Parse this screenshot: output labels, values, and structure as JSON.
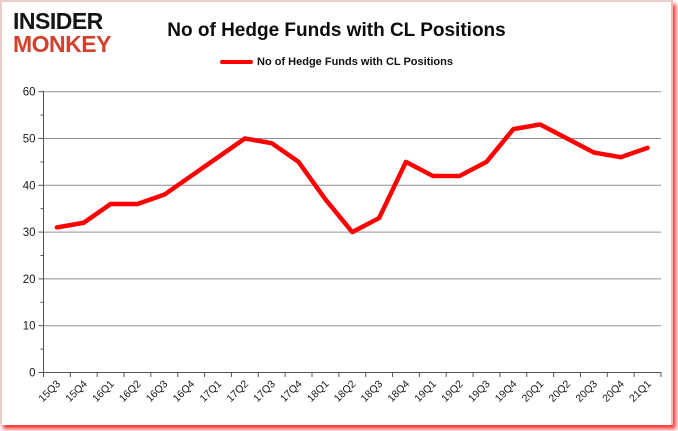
{
  "logo": {
    "line1": "INSIDER",
    "line2": "MONKEY"
  },
  "header": {
    "title": "No of Hedge Funds with CL Positions"
  },
  "legend": {
    "label": "No of Hedge Funds with CL Positions",
    "swatch_color": "#ff0000"
  },
  "chart_data": {
    "type": "line",
    "title": "No of Hedge Funds with CL Positions",
    "categories": [
      "15Q3",
      "15Q4",
      "16Q1",
      "16Q2",
      "16Q3",
      "16Q4",
      "17Q1",
      "17Q2",
      "17Q3",
      "17Q4",
      "18Q1",
      "18Q2",
      "18Q3",
      "18Q4",
      "19Q1",
      "19Q2",
      "19Q3",
      "19Q4",
      "20Q1",
      "20Q2",
      "20Q3",
      "20Q4",
      "21Q1"
    ],
    "series": [
      {
        "name": "No of Hedge Funds with CL Positions",
        "color": "#ff0000",
        "values": [
          31,
          32,
          36,
          36,
          38,
          42,
          46,
          50,
          49,
          45,
          37,
          30,
          33,
          45,
          42,
          42,
          45,
          52,
          53,
          50,
          47,
          46,
          48
        ]
      }
    ],
    "xlabel": "",
    "ylabel": "",
    "ylim": [
      0,
      60
    ],
    "yticks": [
      0,
      10,
      20,
      30,
      40,
      50,
      60
    ],
    "ytick_interval": 10,
    "ytick_minor_interval": 5,
    "x_label_rotation": -45,
    "grid": "horizontal",
    "gridline_color": "#8f8f8f",
    "axis_color": "#555555",
    "label_color": "#1a1a1a",
    "legend_position": "top"
  },
  "colors": {
    "logo_black": "#151515",
    "logo_red": "#d0422e",
    "line_red": "#ff0000",
    "background": "#ffffff",
    "border_glow": "#ff1414"
  }
}
